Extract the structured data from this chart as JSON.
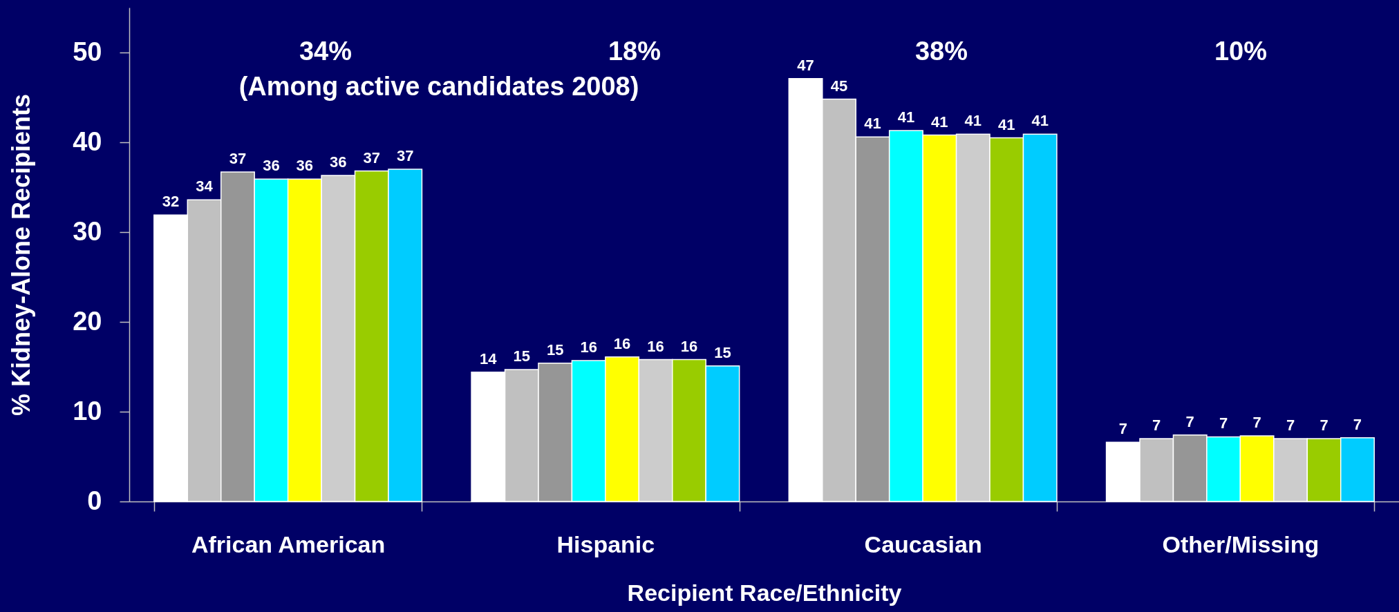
{
  "chart_data": {
    "type": "bar",
    "xlabel": "Recipient Race/Ethnicity",
    "ylabel": "% Kidney-Alone Recipients",
    "categories": [
      "African American",
      "Hispanic",
      "Caucasian",
      "Other/Missing"
    ],
    "ylim": [
      0,
      55
    ],
    "yticks": [
      0,
      10,
      20,
      30,
      40,
      50
    ],
    "series": [
      {
        "color": "#ffffff",
        "values": [
          31.9,
          14.4,
          47.1,
          6.6
        ],
        "value_labels": [
          "32",
          "14",
          "47",
          "7"
        ]
      },
      {
        "color": "#c0c0c0",
        "values": [
          33.6,
          14.7,
          44.8,
          7.0
        ],
        "value_labels": [
          "34",
          "15",
          "45",
          "7"
        ]
      },
      {
        "color": "#969696",
        "values": [
          36.7,
          15.4,
          40.6,
          7.4
        ],
        "value_labels": [
          "37",
          "15",
          "41",
          "7"
        ]
      },
      {
        "color": "#00ffff",
        "values": [
          35.9,
          15.7,
          41.3,
          7.2
        ],
        "value_labels": [
          "36",
          "16",
          "41",
          "7"
        ]
      },
      {
        "color": "#ffff00",
        "values": [
          35.9,
          16.1,
          40.8,
          7.3
        ],
        "value_labels": [
          "36",
          "16",
          "41",
          "7"
        ]
      },
      {
        "color": "#cccccc",
        "values": [
          36.3,
          15.8,
          40.9,
          7.0
        ],
        "value_labels": [
          "36",
          "16",
          "41",
          "7"
        ]
      },
      {
        "color": "#99cc00",
        "values": [
          36.8,
          15.8,
          40.5,
          7.0
        ],
        "value_labels": [
          "37",
          "16",
          "41",
          "7"
        ]
      },
      {
        "color": "#00ccff",
        "values": [
          37.0,
          15.1,
          40.9,
          7.1
        ],
        "value_labels": [
          "37",
          "15",
          "41",
          "7"
        ]
      }
    ],
    "annotations": [
      "34%",
      "(Among active candidates 2008)",
      "18%",
      "38%",
      "10%"
    ]
  }
}
